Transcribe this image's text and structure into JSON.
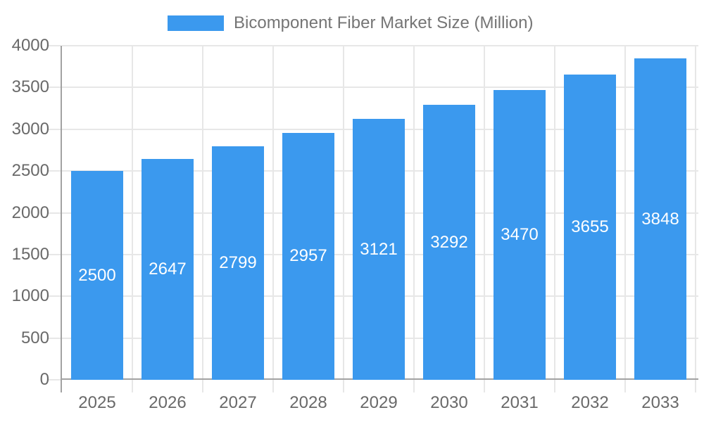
{
  "chart_data": {
    "type": "bar",
    "title": "Bicomponent Fiber Market Size (Million)",
    "legend": {
      "position": "top",
      "label": "Bicomponent Fiber Market Size (Million)"
    },
    "categories": [
      "2025",
      "2026",
      "2027",
      "2028",
      "2029",
      "2030",
      "2031",
      "2032",
      "2033"
    ],
    "series": [
      {
        "name": "Bicomponent Fiber Market Size (Million)",
        "values": [
          2500,
          2647,
          2799,
          2957,
          3121,
          3292,
          3470,
          3655,
          3848
        ]
      }
    ],
    "value_labels_position": "inside-center",
    "xlabel": "",
    "ylabel": "",
    "ylim": [
      0,
      4000
    ],
    "ytick_step": 500,
    "yticks": [
      "0",
      "500",
      "1000",
      "1500",
      "2000",
      "2500",
      "3000",
      "3500",
      "4000"
    ],
    "grid": true,
    "colors": {
      "bar": "#3B99EE",
      "axis_line": "#A2A2A2",
      "grid_line": "#E7E7E7",
      "tick_label": "#696969",
      "legend_label": "#757575",
      "value_label": "#FFFFFF",
      "background": "#FFFFFF"
    }
  }
}
